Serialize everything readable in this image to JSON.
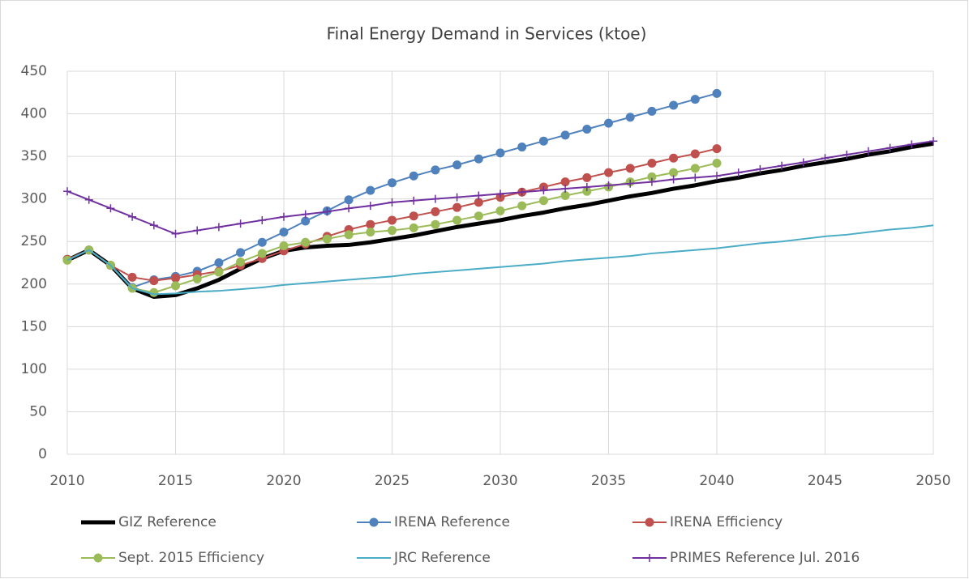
{
  "chart_data": {
    "type": "line",
    "title": "Final Energy Demand in Services (ktoe)",
    "x": [
      2010,
      2011,
      2012,
      2013,
      2014,
      2015,
      2016,
      2017,
      2018,
      2019,
      2020,
      2021,
      2022,
      2023,
      2024,
      2025,
      2026,
      2027,
      2028,
      2029,
      2030,
      2031,
      2032,
      2033,
      2034,
      2035,
      2036,
      2037,
      2038,
      2039,
      2040,
      2041,
      2042,
      2043,
      2044,
      2045,
      2046,
      2047,
      2048,
      2049,
      2050
    ],
    "xlim": [
      2010,
      2050
    ],
    "xticks": [
      2010,
      2015,
      2020,
      2025,
      2030,
      2035,
      2040,
      2045,
      2050
    ],
    "ylim": [
      0,
      450
    ],
    "yticks": [
      0,
      50,
      100,
      150,
      200,
      250,
      300,
      350,
      400,
      450
    ],
    "grid": true,
    "series": [
      {
        "name": "GIZ Reference",
        "color": "#000000",
        "marker": "none",
        "width": 5,
        "values": [
          228,
          240,
          222,
          195,
          185,
          187,
          195,
          205,
          218,
          230,
          239,
          243,
          245,
          246,
          249,
          253,
          257,
          262,
          267,
          271,
          275,
          280,
          284,
          289,
          293,
          298,
          303,
          307,
          312,
          316,
          321,
          325,
          330,
          334,
          339,
          343,
          347,
          352,
          356,
          361,
          365
        ]
      },
      {
        "name": "IRENA Reference",
        "color": "#4f81bd",
        "marker": "circle",
        "width": 2,
        "values": [
          229,
          240,
          222,
          196,
          205,
          209,
          215,
          225,
          237,
          249,
          261,
          274,
          286,
          299,
          310,
          319,
          327,
          334,
          340,
          347,
          354,
          361,
          368,
          375,
          382,
          389,
          396,
          403,
          410,
          417,
          424,
          null,
          null,
          null,
          null,
          null,
          null,
          null,
          null,
          null,
          null
        ]
      },
      {
        "name": "IRENA Efficiency",
        "color": "#c0504d",
        "marker": "circle",
        "width": 2,
        "values": [
          229,
          240,
          222,
          208,
          204,
          207,
          211,
          215,
          222,
          230,
          239,
          247,
          256,
          264,
          270,
          275,
          280,
          285,
          290,
          296,
          302,
          308,
          314,
          320,
          325,
          331,
          336,
          342,
          348,
          353,
          359,
          null,
          null,
          null,
          null,
          null,
          null,
          null,
          null,
          null,
          null
        ]
      },
      {
        "name": "Sept. 2015 Efficiency",
        "color": "#9bbb59",
        "marker": "circle",
        "width": 2,
        "values": [
          228,
          240,
          222,
          195,
          190,
          198,
          206,
          214,
          226,
          236,
          245,
          249,
          253,
          258,
          261,
          263,
          266,
          270,
          275,
          280,
          286,
          292,
          298,
          304,
          309,
          314,
          320,
          326,
          331,
          336,
          342,
          null,
          null,
          null,
          null,
          null,
          null,
          null,
          null,
          null,
          null
        ]
      },
      {
        "name": "JRC Reference",
        "color": "#4bacc6",
        "marker": "none",
        "width": 2,
        "values": [
          228,
          240,
          222,
          195,
          188,
          189,
          191,
          192,
          194,
          196,
          199,
          201,
          203,
          205,
          207,
          209,
          212,
          214,
          216,
          218,
          220,
          222,
          224,
          227,
          229,
          231,
          233,
          236,
          238,
          240,
          242,
          245,
          248,
          250,
          253,
          256,
          258,
          261,
          264,
          266,
          269
        ]
      },
      {
        "name": "PRIMES Reference Jul. 2016",
        "color": "#7030a0",
        "marker": "plus",
        "width": 2,
        "values": [
          309,
          299,
          289,
          279,
          269,
          259,
          263,
          267,
          271,
          275,
          279,
          282,
          285,
          289,
          292,
          296,
          298,
          300,
          302,
          304,
          306,
          308,
          310,
          312,
          314,
          316,
          318,
          320,
          323,
          325,
          327,
          331,
          335,
          339,
          343,
          348,
          352,
          356,
          360,
          364,
          368
        ]
      }
    ]
  }
}
